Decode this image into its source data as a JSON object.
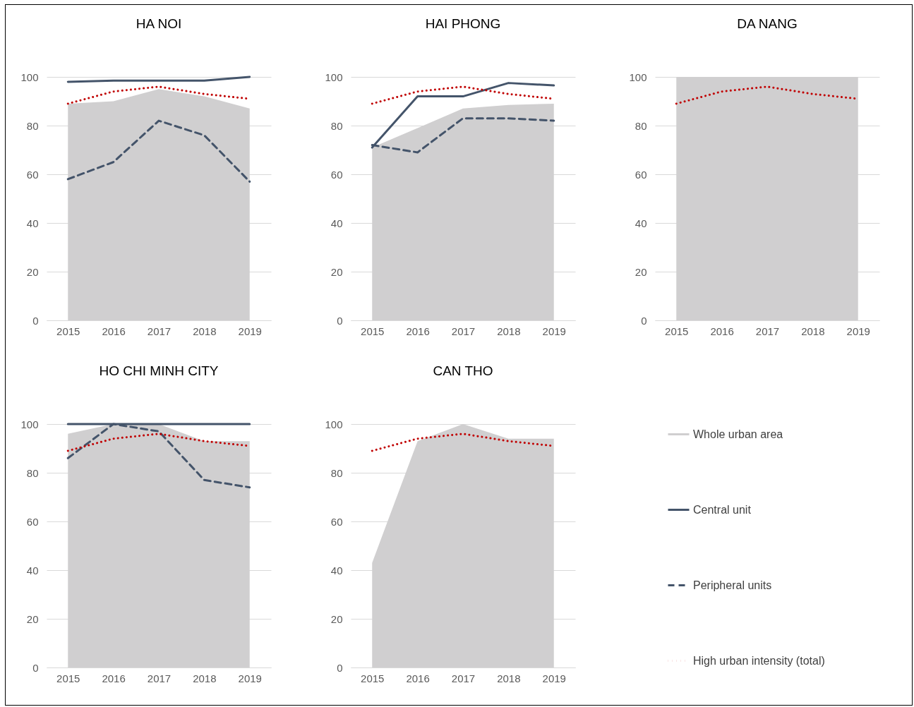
{
  "chart_data": [
    {
      "type": "line",
      "title": "HA NOI",
      "categories": [
        "2015",
        "2016",
        "2017",
        "2018",
        "2019"
      ],
      "ylim": [
        0,
        100
      ],
      "yticks": [
        0,
        20,
        40,
        60,
        80,
        100
      ],
      "grid": "y",
      "legend": "right",
      "series": [
        {
          "name": "Whole urban area",
          "type": "area",
          "color": "#d0cfd0",
          "values": [
            89,
            90,
            95,
            92,
            87
          ]
        },
        {
          "name": "Central unit",
          "color": "#44546a",
          "line_style": "solid",
          "values": [
            98,
            98.5,
            98.5,
            98.5,
            100
          ]
        },
        {
          "name": "Peripheral units",
          "color": "#44546a",
          "line_style": "dashed",
          "values": [
            58,
            65,
            82,
            76,
            57
          ]
        },
        {
          "name": "High urban intensity (total)",
          "color": "#c00000",
          "line_style": "dotted",
          "values": [
            89,
            94,
            96,
            93,
            91
          ]
        }
      ]
    },
    {
      "type": "line",
      "title": "HAI PHONG",
      "categories": [
        "2015",
        "2016",
        "2017",
        "2018",
        "2019"
      ],
      "ylim": [
        0,
        100
      ],
      "yticks": [
        0,
        20,
        40,
        60,
        80,
        100
      ],
      "grid": "y",
      "legend": "right",
      "series": [
        {
          "name": "Whole urban area",
          "type": "area",
          "color": "#d0cfd0",
          "values": [
            71,
            79,
            87,
            88.5,
            89
          ]
        },
        {
          "name": "Central unit",
          "color": "#44546a",
          "line_style": "solid",
          "values": [
            71,
            92,
            92,
            97.5,
            96.5
          ]
        },
        {
          "name": "Peripheral units",
          "color": "#44546a",
          "line_style": "dashed",
          "values": [
            72,
            69,
            83,
            83,
            82
          ]
        },
        {
          "name": "High urban intensity (total)",
          "color": "#c00000",
          "line_style": "dotted",
          "values": [
            89,
            94,
            96,
            93,
            91
          ]
        }
      ]
    },
    {
      "type": "line",
      "title": "DA NANG",
      "categories": [
        "2015",
        "2016",
        "2017",
        "2018",
        "2019"
      ],
      "ylim": [
        0,
        100
      ],
      "yticks": [
        0,
        20,
        40,
        60,
        80,
        100
      ],
      "grid": "y",
      "legend": "right",
      "series": [
        {
          "name": "Whole urban area",
          "type": "area",
          "color": "#d0cfd0",
          "values": [
            100,
            100,
            100,
            100,
            100
          ]
        },
        {
          "name": "High urban intensity (total)",
          "color": "#c00000",
          "line_style": "dotted",
          "values": [
            89,
            94,
            96,
            93,
            91
          ]
        }
      ]
    },
    {
      "type": "line",
      "title": "HO CHI MINH CITY",
      "categories": [
        "2015",
        "2016",
        "2017",
        "2018",
        "2019"
      ],
      "ylim": [
        0,
        100
      ],
      "yticks": [
        0,
        20,
        40,
        60,
        80,
        100
      ],
      "grid": "y",
      "legend": "right",
      "series": [
        {
          "name": "Whole urban area",
          "type": "area",
          "color": "#d0cfd0",
          "values": [
            96,
            100,
            100,
            93,
            93
          ]
        },
        {
          "name": "Central unit",
          "color": "#44546a",
          "line_style": "solid",
          "values": [
            100,
            100,
            100,
            100,
            100
          ]
        },
        {
          "name": "Peripheral units",
          "color": "#44546a",
          "line_style": "dashed",
          "values": [
            86,
            100,
            97,
            77,
            74
          ]
        },
        {
          "name": "High urban intensity (total)",
          "color": "#c00000",
          "line_style": "dotted",
          "values": [
            89,
            94,
            96,
            93,
            91
          ]
        }
      ]
    },
    {
      "type": "line",
      "title": "CAN THO",
      "categories": [
        "2015",
        "2016",
        "2017",
        "2018",
        "2019"
      ],
      "ylim": [
        0,
        100
      ],
      "yticks": [
        0,
        20,
        40,
        60,
        80,
        100
      ],
      "grid": "y",
      "legend": "right",
      "series": [
        {
          "name": "Whole urban area",
          "type": "area",
          "color": "#d0cfd0",
          "values": [
            43,
            93,
            100,
            94,
            94
          ]
        },
        {
          "name": "High urban intensity (total)",
          "color": "#c00000",
          "line_style": "dotted",
          "values": [
            89,
            94,
            96,
            93,
            91
          ]
        }
      ]
    }
  ]
}
